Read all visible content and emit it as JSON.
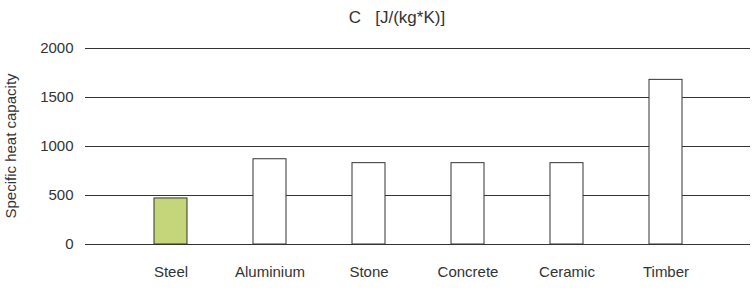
{
  "chart_data": {
    "type": "bar",
    "title": "C   [J/(kg*K)]",
    "y_label": "Specific heat capacity",
    "categories": [
      "Steel",
      "Aluminium",
      "Stone",
      "Concrete",
      "Ceramic",
      "Timber"
    ],
    "values": [
      470,
      870,
      830,
      830,
      830,
      1680
    ],
    "colors": [
      "#c5d67a",
      "#ffffff",
      "#ffffff",
      "#ffffff",
      "#ffffff",
      "#ffffff"
    ],
    "ylim": [
      0,
      2000
    ],
    "yticks": [
      0,
      500,
      1000,
      1500,
      2000
    ],
    "grid": true
  }
}
